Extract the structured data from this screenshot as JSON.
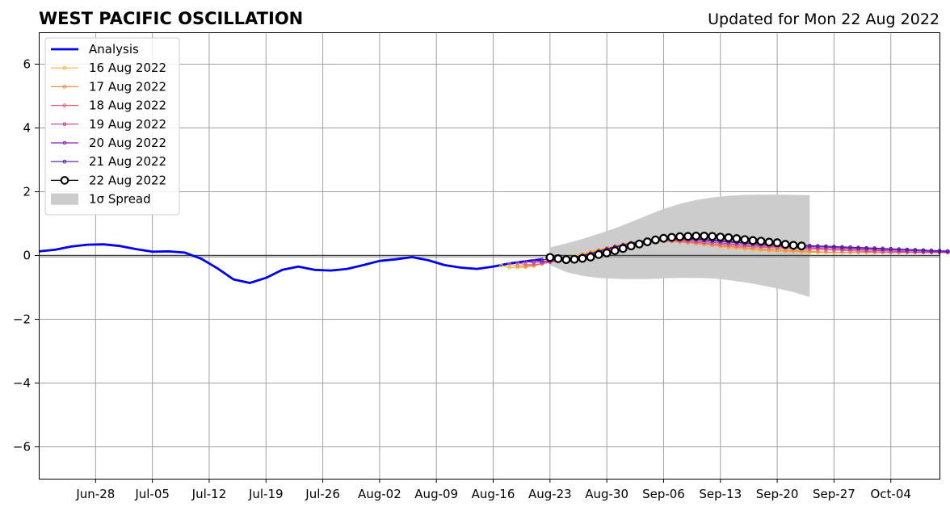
{
  "title_left": "WEST PACIFIC OSCILLATION",
  "title_right": "Updated for Mon 22 Aug 2022",
  "chart_data": {
    "type": "line",
    "x_type": "date",
    "xlim": [
      "2022-06-21",
      "2022-10-10"
    ],
    "ylim": [
      -7,
      7
    ],
    "x_ticks": [
      "2022-06-28",
      "2022-07-05",
      "2022-07-12",
      "2022-07-19",
      "2022-07-26",
      "2022-08-02",
      "2022-08-09",
      "2022-08-16",
      "2022-08-23",
      "2022-08-30",
      "2022-09-06",
      "2022-09-13",
      "2022-09-20",
      "2022-09-27",
      "2022-10-04"
    ],
    "x_tick_labels": [
      "Jun-28",
      "Jul-05",
      "Jul-12",
      "Jul-19",
      "Jul-26",
      "Aug-02",
      "Aug-09",
      "Aug-16",
      "Aug-23",
      "Aug-30",
      "Sep-06",
      "Sep-13",
      "Sep-20",
      "Sep-27",
      "Oct-04"
    ],
    "y_ticks": [
      -6,
      -4,
      -2,
      0,
      2,
      4,
      6
    ],
    "y_tick_labels": [
      "−6",
      "−4",
      "−2",
      "0",
      "2",
      "4",
      "6"
    ],
    "grid": true,
    "legend_position": "top-left",
    "analysis": {
      "name": "Analysis",
      "color": "#0000ee",
      "points": [
        [
          "2022-06-21",
          0.13
        ],
        [
          "2022-06-23",
          0.18
        ],
        [
          "2022-06-25",
          0.28
        ],
        [
          "2022-06-27",
          0.34
        ],
        [
          "2022-06-29",
          0.35
        ],
        [
          "2022-07-01",
          0.3
        ],
        [
          "2022-07-03",
          0.2
        ],
        [
          "2022-07-05",
          0.12
        ],
        [
          "2022-07-07",
          0.13
        ],
        [
          "2022-07-09",
          0.09
        ],
        [
          "2022-07-11",
          -0.1
        ],
        [
          "2022-07-13",
          -0.4
        ],
        [
          "2022-07-15",
          -0.75
        ],
        [
          "2022-07-17",
          -0.86
        ],
        [
          "2022-07-19",
          -0.7
        ],
        [
          "2022-07-21",
          -0.45
        ],
        [
          "2022-07-23",
          -0.35
        ],
        [
          "2022-07-25",
          -0.45
        ],
        [
          "2022-07-27",
          -0.47
        ],
        [
          "2022-07-29",
          -0.42
        ],
        [
          "2022-07-31",
          -0.3
        ],
        [
          "2022-08-02",
          -0.17
        ],
        [
          "2022-08-04",
          -0.12
        ],
        [
          "2022-08-06",
          -0.05
        ],
        [
          "2022-08-08",
          -0.15
        ],
        [
          "2022-08-10",
          -0.3
        ],
        [
          "2022-08-12",
          -0.38
        ],
        [
          "2022-08-14",
          -0.42
        ],
        [
          "2022-08-16",
          -0.35
        ],
        [
          "2022-08-18",
          -0.25
        ],
        [
          "2022-08-20",
          -0.18
        ],
        [
          "2022-08-22",
          -0.12
        ]
      ]
    },
    "forecasts": [
      {
        "name": "16 Aug 2022",
        "color": "#f6b53c",
        "start": "2022-08-17",
        "values": [
          -0.32,
          -0.38,
          -0.38,
          -0.36,
          -0.33,
          -0.26,
          -0.2,
          -0.15,
          -0.08,
          -0.02,
          0.05,
          0.12,
          0.18,
          0.24,
          0.3,
          0.36,
          0.4,
          0.43,
          0.45,
          0.46,
          0.46,
          0.45,
          0.43,
          0.41,
          0.38,
          0.35,
          0.32,
          0.28,
          0.25,
          0.22,
          0.2,
          0.18,
          0.16,
          0.15,
          0.14,
          0.13,
          0.12,
          0.11,
          0.1,
          0.1,
          0.1,
          0.1,
          0.1,
          0.1,
          0.1,
          0.1,
          0.1,
          0.1,
          0.1,
          0.1,
          0.1,
          0.1,
          0.1,
          0.1,
          0.1,
          0.1,
          0.1,
          0.1,
          0.1,
          0.1,
          0.1,
          0.1,
          0.1,
          0.1,
          0.1,
          0.1,
          0.1,
          0.1,
          0.1,
          0.1
        ]
      },
      {
        "name": "17 Aug 2022",
        "color": "#f08c4a",
        "start": "2022-08-18",
        "values": [
          -0.28,
          -0.32,
          -0.34,
          -0.3,
          -0.25,
          -0.2,
          -0.15,
          -0.1,
          -0.04,
          0.02,
          0.09,
          0.16,
          0.23,
          0.29,
          0.34,
          0.38,
          0.42,
          0.44,
          0.45,
          0.45,
          0.44,
          0.42,
          0.4,
          0.38,
          0.35,
          0.32,
          0.3,
          0.28,
          0.26,
          0.24,
          0.22,
          0.2,
          0.18,
          0.17,
          0.16,
          0.15,
          0.14,
          0.13,
          0.12,
          0.11,
          0.1,
          0.1,
          0.1,
          0.1,
          0.1,
          0.1,
          0.1,
          0.1,
          0.1,
          0.1,
          0.1,
          0.1,
          0.1,
          0.1,
          0.1,
          0.1,
          0.1,
          0.1,
          0.1,
          0.1,
          0.1,
          0.1,
          0.1,
          0.1,
          0.1,
          0.1,
          0.1,
          0.1,
          0.1,
          0.1
        ]
      },
      {
        "name": "18 Aug 2022",
        "color": "#e0607a",
        "start": "2022-08-19",
        "values": [
          -0.24,
          -0.28,
          -0.29,
          -0.26,
          -0.21,
          -0.16,
          -0.11,
          -0.06,
          0.0,
          0.07,
          0.14,
          0.22,
          0.28,
          0.34,
          0.39,
          0.43,
          0.46,
          0.47,
          0.47,
          0.46,
          0.45,
          0.43,
          0.41,
          0.39,
          0.36,
          0.34,
          0.32,
          0.3,
          0.28,
          0.27,
          0.26,
          0.25,
          0.24,
          0.23,
          0.22,
          0.21,
          0.2,
          0.19,
          0.18,
          0.17,
          0.16,
          0.15,
          0.14,
          0.13,
          0.12,
          0.11,
          0.1,
          0.1,
          0.1,
          0.1,
          0.1,
          0.1,
          0.1,
          0.1,
          0.1,
          0.1,
          0.1,
          0.1,
          0.1,
          0.1,
          0.1,
          0.1,
          0.1,
          0.1,
          0.1,
          0.1,
          0.1,
          0.1,
          0.1,
          0.1
        ]
      },
      {
        "name": "19 Aug 2022",
        "color": "#bf3a96",
        "start": "2022-08-20",
        "values": [
          -0.2,
          -0.22,
          -0.22,
          -0.2,
          -0.16,
          -0.12,
          -0.07,
          -0.02,
          0.05,
          0.12,
          0.19,
          0.26,
          0.32,
          0.37,
          0.42,
          0.46,
          0.48,
          0.49,
          0.49,
          0.48,
          0.47,
          0.45,
          0.43,
          0.41,
          0.39,
          0.37,
          0.35,
          0.33,
          0.31,
          0.3,
          0.29,
          0.28,
          0.27,
          0.26,
          0.25,
          0.24,
          0.23,
          0.22,
          0.21,
          0.2,
          0.19,
          0.18,
          0.17,
          0.16,
          0.15,
          0.14,
          0.13,
          0.12,
          0.11,
          0.1,
          0.1,
          0.1,
          0.1,
          0.1,
          0.1,
          0.1,
          0.1,
          0.1,
          0.1,
          0.1,
          0.1,
          0.1,
          0.1,
          0.1,
          0.1,
          0.1,
          0.1,
          0.1,
          0.1,
          0.1
        ]
      },
      {
        "name": "20 Aug 2022",
        "color": "#8a1fb0",
        "start": "2022-08-21",
        "values": [
          -0.17,
          -0.18,
          -0.17,
          -0.15,
          -0.12,
          -0.07,
          -0.02,
          0.04,
          0.11,
          0.18,
          0.25,
          0.31,
          0.37,
          0.42,
          0.46,
          0.49,
          0.51,
          0.52,
          0.52,
          0.51,
          0.5,
          0.48,
          0.46,
          0.44,
          0.42,
          0.4,
          0.38,
          0.36,
          0.34,
          0.33,
          0.32,
          0.31,
          0.3,
          0.29,
          0.28,
          0.27,
          0.26,
          0.25,
          0.24,
          0.23,
          0.22,
          0.21,
          0.2,
          0.19,
          0.18,
          0.17,
          0.16,
          0.15,
          0.14,
          0.13,
          0.12,
          0.11,
          0.1,
          0.1,
          0.1,
          0.1,
          0.1,
          0.1,
          0.1,
          0.1,
          0.1,
          0.1,
          0.1,
          0.1,
          0.1,
          0.1,
          0.1,
          0.1,
          0.1,
          0.1
        ]
      },
      {
        "name": "21 Aug 2022",
        "color": "#4b1aa0",
        "start": "2022-08-22",
        "values": [
          -0.13,
          -0.12,
          -0.11,
          -0.09,
          -0.05,
          0.0,
          0.06,
          0.13,
          0.2,
          0.27,
          0.33,
          0.39,
          0.44,
          0.48,
          0.51,
          0.53,
          0.54,
          0.54,
          0.53,
          0.52,
          0.5,
          0.48,
          0.46,
          0.44,
          0.42,
          0.4,
          0.38,
          0.37,
          0.36,
          0.35,
          0.34,
          0.33,
          0.32,
          0.31,
          0.3,
          0.29,
          0.28,
          0.27,
          0.26,
          0.25,
          0.24,
          0.23,
          0.22,
          0.21,
          0.2,
          0.19,
          0.18,
          0.17,
          0.16,
          0.15,
          0.14,
          0.13,
          0.12,
          0.11,
          0.1,
          0.1,
          0.1,
          0.1,
          0.1,
          0.1,
          0.1,
          0.1,
          0.1,
          0.1,
          0.1,
          0.1,
          0.1,
          0.1,
          0.1,
          0.1
        ]
      },
      {
        "name": "22 Aug 2022",
        "color": "#000000",
        "start": "2022-08-23",
        "values": [
          -0.06,
          -0.1,
          -0.13,
          -0.12,
          -0.09,
          -0.05,
          0.03,
          0.08,
          0.15,
          0.22,
          0.3,
          0.36,
          0.43,
          0.49,
          0.54,
          0.57,
          0.59,
          0.6,
          0.61,
          0.61,
          0.6,
          0.58,
          0.56,
          0.53,
          0.5,
          0.47,
          0.45,
          0.42,
          0.4,
          0.35,
          0.32,
          0.3
        ]
      }
    ],
    "spread": {
      "name": "1σ Spread",
      "color": "#cccccc",
      "points": [
        [
          "2022-08-23",
          0.25,
          -0.3
        ],
        [
          "2022-08-25",
          0.38,
          -0.52
        ],
        [
          "2022-08-27",
          0.52,
          -0.64
        ],
        [
          "2022-08-29",
          0.68,
          -0.7
        ],
        [
          "2022-08-31",
          0.85,
          -0.73
        ],
        [
          "2022-09-02",
          1.05,
          -0.74
        ],
        [
          "2022-09-04",
          1.26,
          -0.74
        ],
        [
          "2022-09-06",
          1.46,
          -0.72
        ],
        [
          "2022-09-08",
          1.62,
          -0.7
        ],
        [
          "2022-09-10",
          1.74,
          -0.7
        ],
        [
          "2022-09-12",
          1.82,
          -0.72
        ],
        [
          "2022-09-14",
          1.87,
          -0.77
        ],
        [
          "2022-09-16",
          1.9,
          -0.84
        ],
        [
          "2022-09-18",
          1.91,
          -0.93
        ],
        [
          "2022-09-20",
          1.91,
          -1.03
        ],
        [
          "2022-09-22",
          1.9,
          -1.15
        ],
        [
          "2022-09-24",
          1.89,
          -1.3
        ]
      ]
    }
  }
}
